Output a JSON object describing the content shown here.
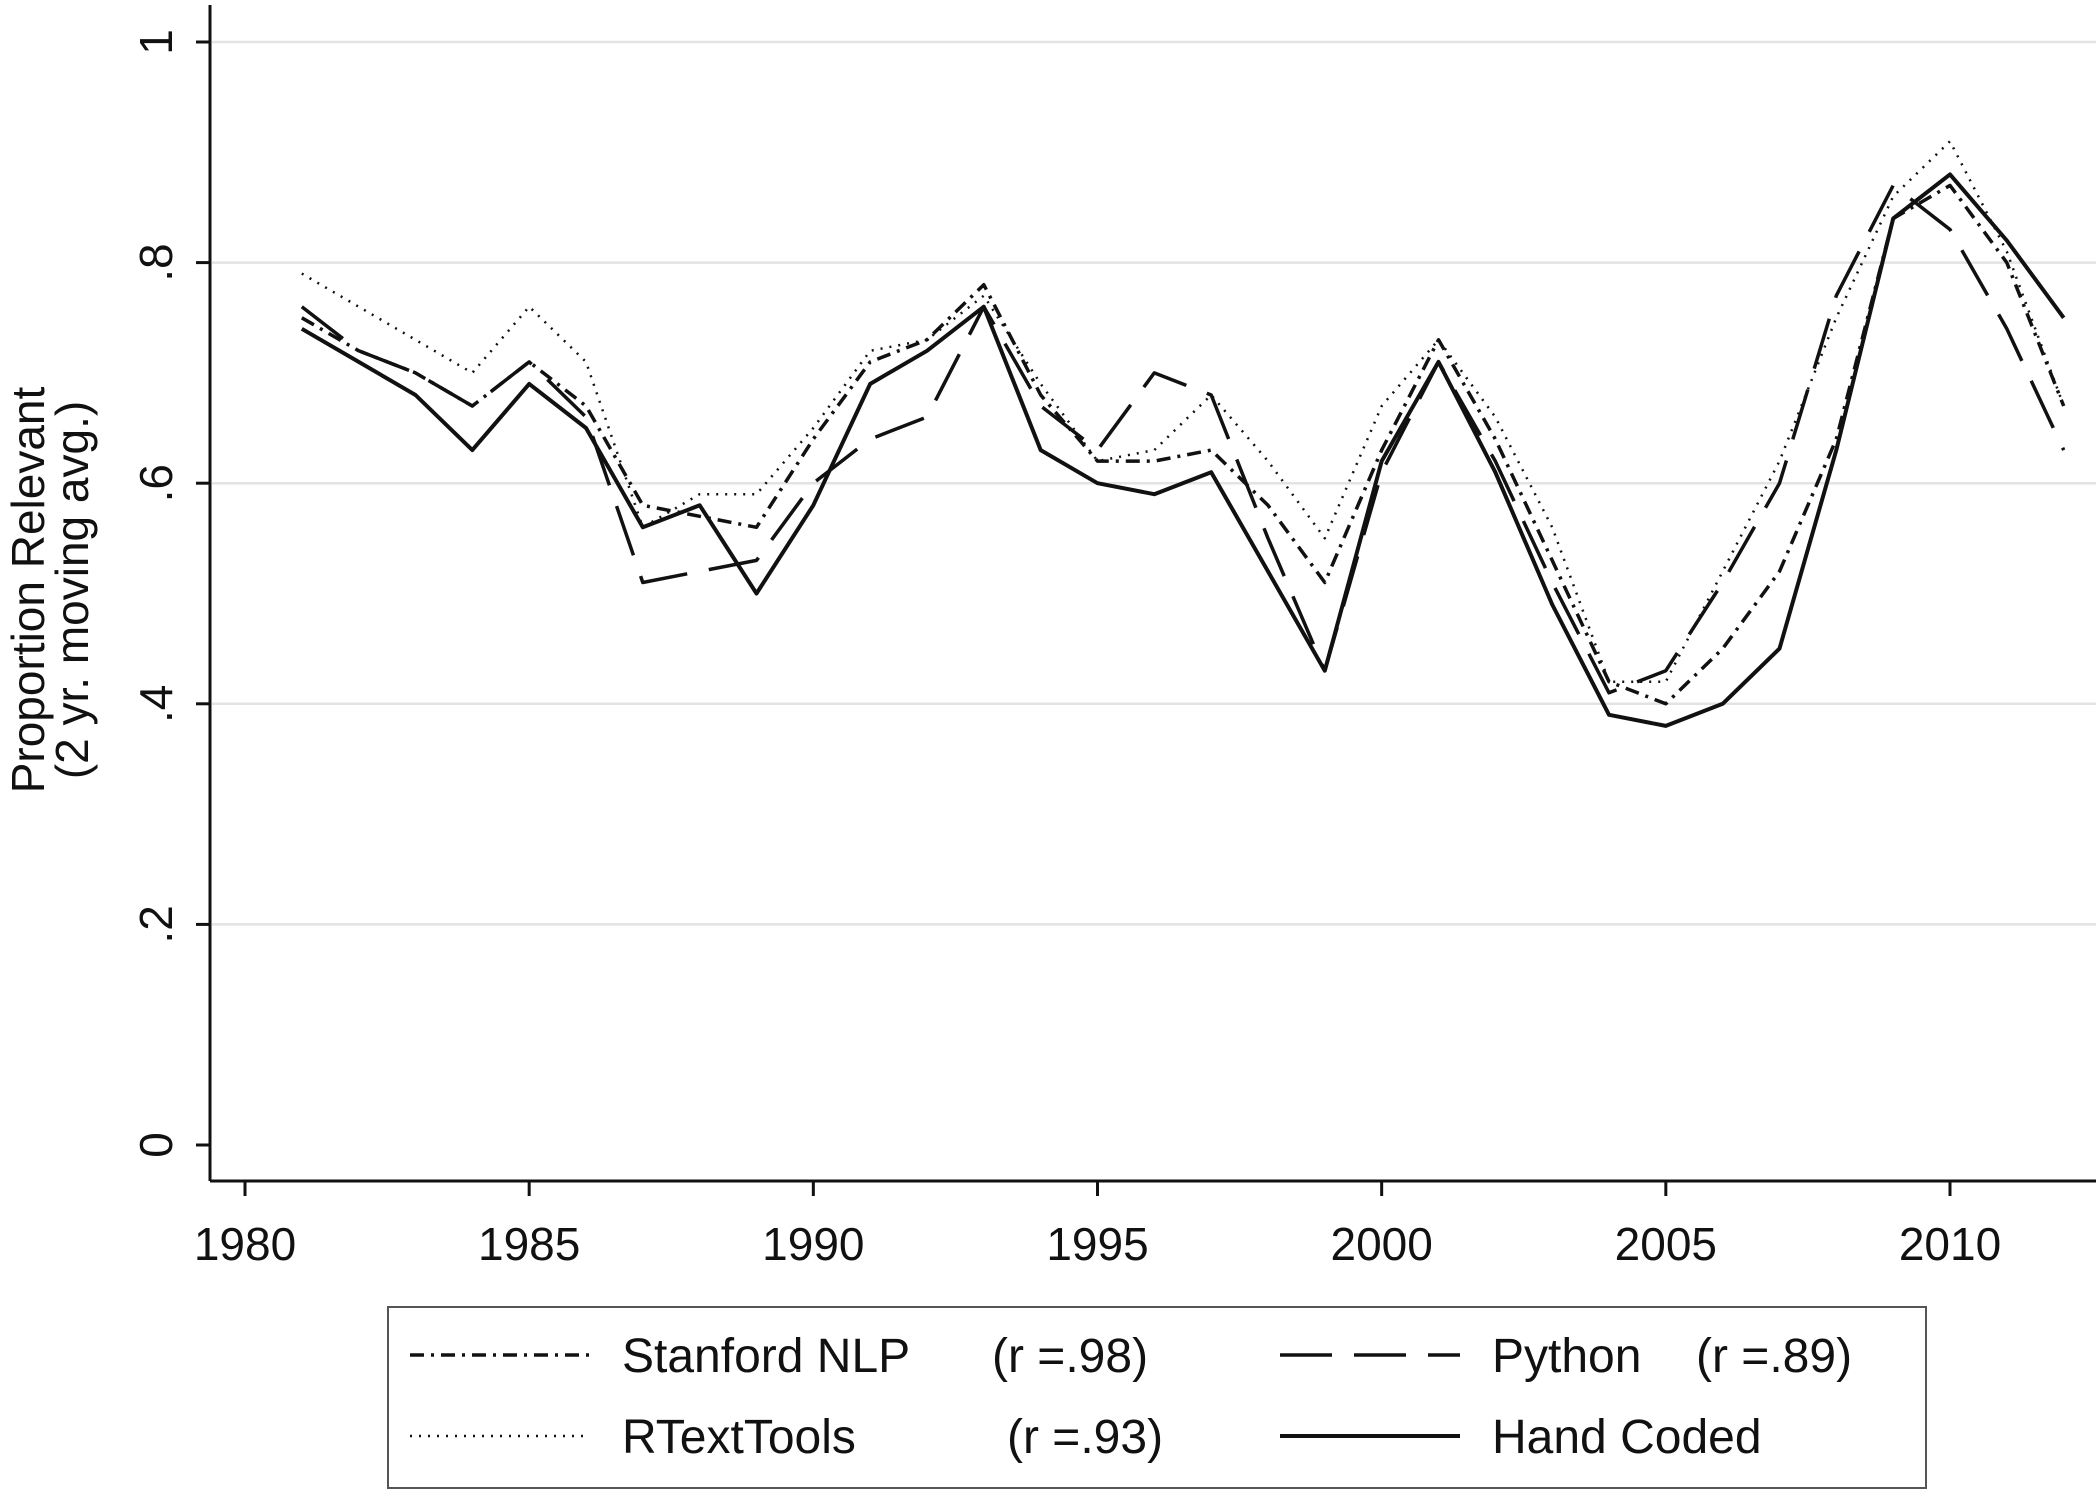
{
  "chart_data": {
    "type": "line",
    "xlabel": "",
    "ylabel": "Proportion Relevant",
    "ylabel_sub": "(2 yr. moving avg.)",
    "xlim": [
      1980,
      2012
    ],
    "ylim": [
      0,
      1
    ],
    "x_ticks": [
      1980,
      1985,
      1990,
      1995,
      2000,
      2005,
      2010
    ],
    "x_tick_labels": [
      "1980",
      "1985",
      "1990",
      "1995",
      "2000",
      "2005",
      "2010"
    ],
    "y_ticks": [
      0,
      0.2,
      0.4,
      0.6,
      0.8,
      1
    ],
    "y_tick_labels": [
      "0",
      ".2",
      ".4",
      ".6",
      ".8",
      "1"
    ],
    "grid": "horizontal",
    "legend_position": "bottom",
    "x": [
      1981,
      1982,
      1983,
      1984,
      1985,
      1986,
      1987,
      1988,
      1989,
      1990,
      1991,
      1992,
      1993,
      1994,
      1995,
      1996,
      1997,
      1998,
      1999,
      2000,
      2001,
      2002,
      2003,
      2004,
      2005,
      2006,
      2007,
      2008,
      2009,
      2010,
      2011,
      2012
    ],
    "series": [
      {
        "name": "Stanford NLP",
        "stat": "(r =.98)",
        "style": "dash-dot",
        "values": [
          0.75,
          0.72,
          0.7,
          0.67,
          0.71,
          0.67,
          0.58,
          0.57,
          0.56,
          0.64,
          0.71,
          0.73,
          0.78,
          0.68,
          0.62,
          0.62,
          0.63,
          0.58,
          0.51,
          0.63,
          0.73,
          0.64,
          0.53,
          0.42,
          0.4,
          0.45,
          0.52,
          0.64,
          0.84,
          0.87,
          0.8,
          0.67
        ]
      },
      {
        "name": "Python",
        "stat": "(r =.89)",
        "style": "dashed",
        "values": [
          0.76,
          0.72,
          0.7,
          0.67,
          0.71,
          0.66,
          0.51,
          0.52,
          0.53,
          0.6,
          0.64,
          0.66,
          0.76,
          0.67,
          0.63,
          0.7,
          0.68,
          0.55,
          0.43,
          0.61,
          0.71,
          0.62,
          0.51,
          0.41,
          0.43,
          0.51,
          0.6,
          0.77,
          0.87,
          0.83,
          0.74,
          0.63
        ]
      },
      {
        "name": "RTextTools",
        "stat": "(r =.93)",
        "style": "dotted",
        "values": [
          0.79,
          0.76,
          0.73,
          0.7,
          0.76,
          0.71,
          0.56,
          0.59,
          0.59,
          0.65,
          0.72,
          0.73,
          0.77,
          0.69,
          0.62,
          0.63,
          0.68,
          0.62,
          0.55,
          0.67,
          0.73,
          0.66,
          0.56,
          0.42,
          0.42,
          0.52,
          0.62,
          0.75,
          0.86,
          0.91,
          0.81,
          0.67
        ]
      },
      {
        "name": "Hand Coded",
        "stat": "",
        "style": "solid",
        "values": [
          0.74,
          0.71,
          0.68,
          0.63,
          0.69,
          0.65,
          0.56,
          0.58,
          0.5,
          0.58,
          0.69,
          0.72,
          0.76,
          0.63,
          0.6,
          0.59,
          0.61,
          0.52,
          0.43,
          0.62,
          0.71,
          0.61,
          0.49,
          0.39,
          0.38,
          0.4,
          0.45,
          0.63,
          0.84,
          0.88,
          0.82,
          0.75
        ]
      }
    ]
  }
}
